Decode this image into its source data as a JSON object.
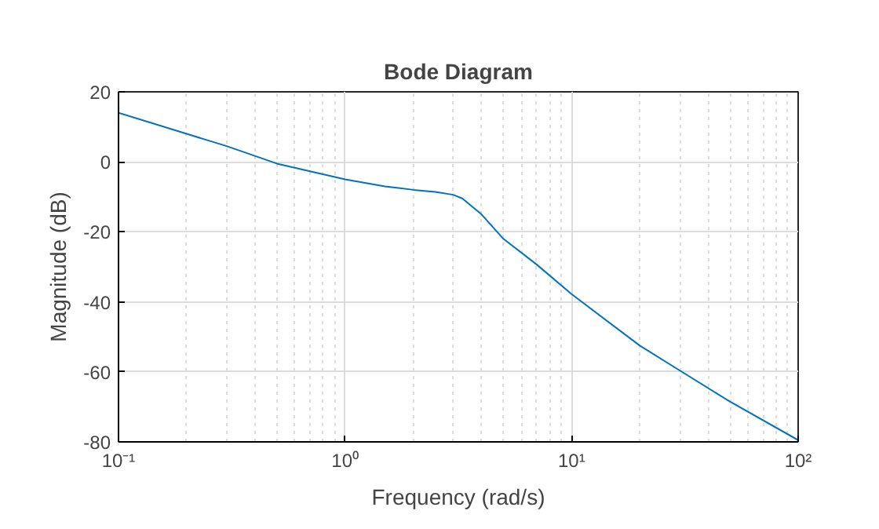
{
  "chart_data": {
    "type": "line",
    "title": "Bode Diagram",
    "xlabel": "Frequency (rad/s)",
    "ylabel": "Magnitude (dB)",
    "log": "x",
    "grid": true,
    "xlim": [
      0.1,
      100
    ],
    "ylim": [
      -80,
      20
    ],
    "xticks": [
      {
        "value": 0.1,
        "label": "10⁻¹"
      },
      {
        "value": 1,
        "label": "10⁰"
      },
      {
        "value": 10,
        "label": "10¹"
      },
      {
        "value": 100,
        "label": "10²"
      }
    ],
    "yticks": [
      -80,
      -60,
      -40,
      -20,
      0,
      20
    ],
    "series": [
      {
        "color": "#0072bd",
        "x": [
          0.1,
          0.2,
          0.3,
          0.5,
          1,
          1.5,
          2,
          2.5,
          3,
          3.3,
          4,
          5,
          7,
          10,
          20,
          30,
          50,
          100
        ],
        "values": [
          14,
          8,
          4.5,
          -0.5,
          -5,
          -7,
          -8,
          -8.6,
          -9.4,
          -10.5,
          -15,
          -22,
          -29.3,
          -37.8,
          -52.5,
          -59.6,
          -68.5,
          -79.5
        ]
      }
    ]
  }
}
